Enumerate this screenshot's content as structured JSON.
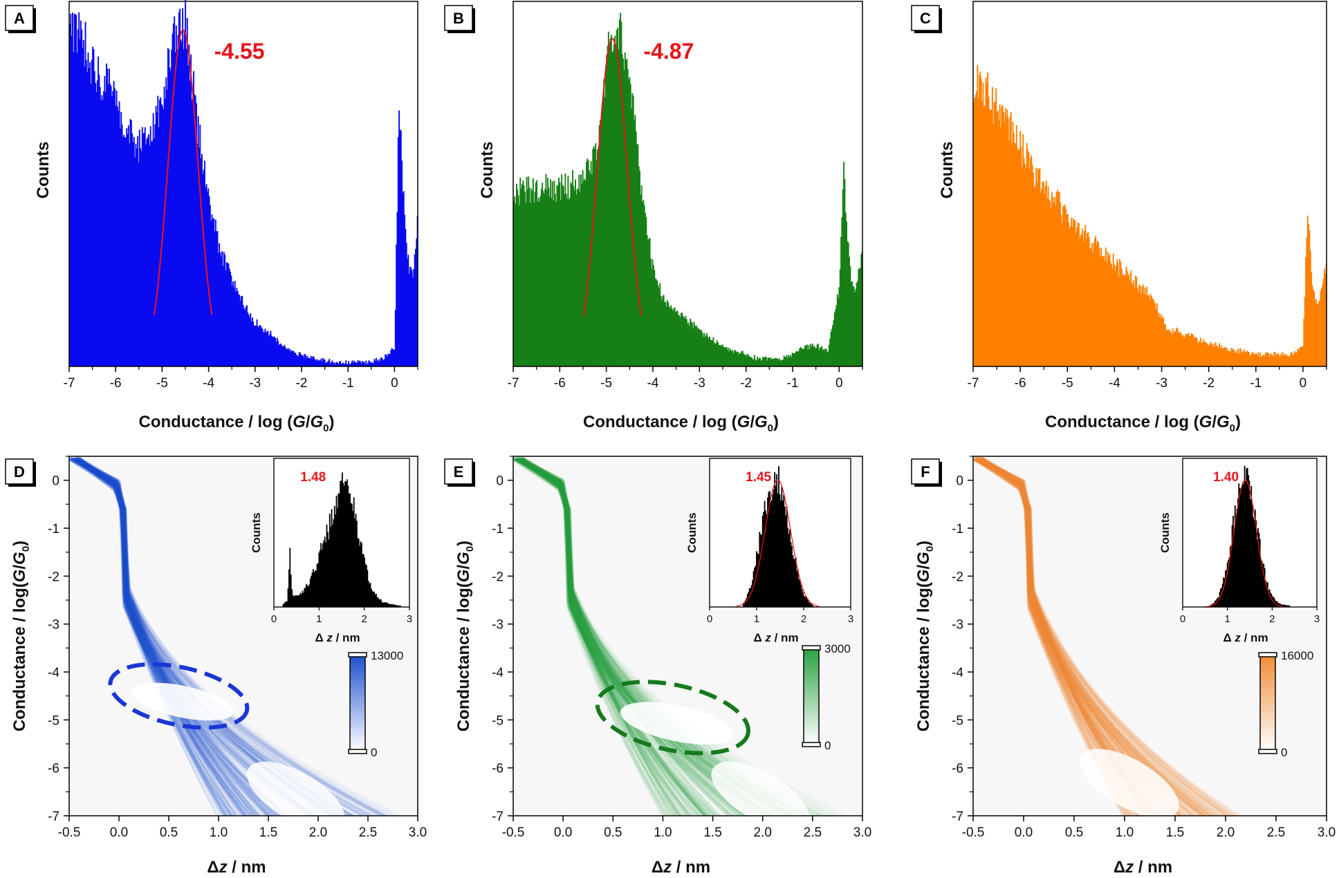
{
  "chart_data": [
    {
      "panel": "A",
      "type": "bar",
      "xlabel": "Conductance / log (G/G0)",
      "ylabel": "Counts",
      "xlim": [
        -7,
        0.5
      ],
      "color": "#0a0af0",
      "xticks": [
        "-7",
        "-6",
        "-5",
        "-4",
        "-3",
        "-2",
        "-1",
        "0"
      ],
      "peak_label": "-4.55",
      "peak_x": -4.55,
      "x": [
        -7.0,
        -6.75,
        -6.5,
        -6.25,
        -6.0,
        -5.75,
        -5.5,
        -5.25,
        -5.0,
        -4.75,
        -4.5,
        -4.25,
        -4.0,
        -3.75,
        -3.5,
        -3.25,
        -3.0,
        -2.75,
        -2.5,
        -2.25,
        -2.0,
        -1.75,
        -1.5,
        -1.25,
        -1.0,
        -0.75,
        -0.5,
        -0.25,
        0.0,
        0.1,
        0.2,
        0.3,
        0.4,
        0.5
      ],
      "values": [
        0.85,
        0.86,
        0.76,
        0.72,
        0.67,
        0.6,
        0.56,
        0.59,
        0.68,
        0.83,
        0.86,
        0.62,
        0.42,
        0.29,
        0.22,
        0.16,
        0.11,
        0.09,
        0.06,
        0.04,
        0.03,
        0.02,
        0.015,
        0.01,
        0.01,
        0.01,
        0.012,
        0.02,
        0.05,
        0.7,
        0.4,
        0.25,
        0.22,
        0.4
      ]
    },
    {
      "panel": "B",
      "type": "bar",
      "xlabel": "Conductance / log (G/G0)",
      "ylabel": "Counts",
      "xlim": [
        -7,
        0.5
      ],
      "color": "#168016",
      "xticks": [
        "-7",
        "-6",
        "-5",
        "-4",
        "-3",
        "-2",
        "-1",
        "0"
      ],
      "peak_label": "-4.87",
      "peak_x": -4.87,
      "x": [
        -7.0,
        -6.75,
        -6.5,
        -6.25,
        -6.0,
        -5.75,
        -5.5,
        -5.25,
        -5.0,
        -4.75,
        -4.5,
        -4.25,
        -4.0,
        -3.75,
        -3.5,
        -3.25,
        -3.0,
        -2.75,
        -2.5,
        -2.25,
        -2.0,
        -1.75,
        -1.5,
        -1.25,
        -1.0,
        -0.75,
        -0.5,
        -0.25,
        0.0,
        0.1,
        0.2,
        0.3,
        0.4,
        0.5
      ],
      "values": [
        0.43,
        0.45,
        0.45,
        0.45,
        0.45,
        0.46,
        0.47,
        0.52,
        0.78,
        0.88,
        0.72,
        0.45,
        0.25,
        0.16,
        0.14,
        0.12,
        0.09,
        0.07,
        0.05,
        0.04,
        0.03,
        0.02,
        0.02,
        0.02,
        0.03,
        0.05,
        0.05,
        0.04,
        0.2,
        0.5,
        0.28,
        0.18,
        0.22,
        0.28
      ]
    },
    {
      "panel": "C",
      "type": "bar",
      "xlabel": "Conductance / log (G/G0)",
      "ylabel": "Counts",
      "xlim": [
        -7,
        0.5
      ],
      "color": "#ff8000",
      "xticks": [
        "-7",
        "-6",
        "-5",
        "-4",
        "-3",
        "-2",
        "-1",
        "0"
      ],
      "x": [
        -7.0,
        -6.75,
        -6.5,
        -6.25,
        -6.0,
        -5.75,
        -5.5,
        -5.25,
        -5.0,
        -4.75,
        -4.5,
        -4.25,
        -4.0,
        -3.75,
        -3.5,
        -3.25,
        -3.0,
        -2.85,
        -2.7,
        -2.5,
        -2.25,
        -2.0,
        -1.75,
        -1.5,
        -1.25,
        -1.0,
        -0.75,
        -0.5,
        -0.25,
        0.0,
        0.1,
        0.2,
        0.3,
        0.4,
        0.5
      ],
      "values": [
        0.72,
        0.7,
        0.66,
        0.61,
        0.56,
        0.5,
        0.46,
        0.42,
        0.38,
        0.35,
        0.32,
        0.29,
        0.26,
        0.24,
        0.21,
        0.18,
        0.12,
        0.09,
        0.09,
        0.08,
        0.07,
        0.06,
        0.05,
        0.04,
        0.04,
        0.03,
        0.03,
        0.03,
        0.03,
        0.05,
        0.42,
        0.2,
        0.15,
        0.2,
        0.25
      ]
    },
    {
      "panel": "D",
      "type": "heatmap",
      "xlabel": "Δz / nm",
      "ylabel": "Conductance / log(G/G0)",
      "xlim": [
        -0.5,
        3.0
      ],
      "ylim": [
        -7,
        0.5
      ],
      "color": "#1c4fd0",
      "xticks": [
        "-0.5",
        "0.0",
        "0.5",
        "1.0",
        "1.5",
        "2.0",
        "2.5",
        "3.0"
      ],
      "yticks": [
        "0",
        "-1",
        "-2",
        "-3",
        "-4",
        "-5",
        "-6",
        "-7"
      ],
      "colorbar": {
        "max": "13000",
        "min": "0"
      },
      "ellipse": {
        "cx": 0.6,
        "cy": -4.5,
        "rx": 0.7,
        "ry": 0.6
      },
      "inset": {
        "type": "bar",
        "xlabel": "Δ z / nm",
        "ylabel": "Counts",
        "xlim": [
          0,
          3
        ],
        "xticks": [
          "0",
          "1",
          "2",
          "3"
        ],
        "peak_label": "1.48",
        "x": [
          0.2,
          0.3,
          0.35,
          0.4,
          0.5,
          0.6,
          0.7,
          0.8,
          0.9,
          1.0,
          1.1,
          1.2,
          1.3,
          1.4,
          1.5,
          1.6,
          1.7,
          1.8,
          1.9,
          2.0,
          2.1,
          2.2,
          2.3,
          2.4,
          2.6,
          2.8
        ],
        "values": [
          0.02,
          0.05,
          0.45,
          0.1,
          0.08,
          0.1,
          0.14,
          0.2,
          0.28,
          0.38,
          0.48,
          0.58,
          0.7,
          0.82,
          0.92,
          0.95,
          0.85,
          0.68,
          0.5,
          0.34,
          0.2,
          0.12,
          0.07,
          0.04,
          0.02,
          0.01
        ]
      }
    },
    {
      "panel": "E",
      "type": "heatmap",
      "xlabel": "Δz / nm",
      "ylabel": "Conductance / log(G/G0)",
      "xlim": [
        -0.5,
        3.0
      ],
      "ylim": [
        -7,
        0.5
      ],
      "color": "#28a040",
      "xticks": [
        "-0.5",
        "0.0",
        "0.5",
        "1.0",
        "1.5",
        "2.0",
        "2.5",
        "3.0"
      ],
      "yticks": [
        "0",
        "-1",
        "-2",
        "-3",
        "-4",
        "-5",
        "-6",
        "-7"
      ],
      "colorbar": {
        "max": "3000",
        "min": "0"
      },
      "ellipse": {
        "cx": 1.1,
        "cy": -4.95,
        "rx": 0.77,
        "ry": 0.68
      },
      "inset": {
        "type": "bar",
        "xlabel": "Δ z / nm",
        "ylabel": "Counts",
        "xlim": [
          0,
          3
        ],
        "xticks": [
          "0",
          "1",
          "2",
          "3"
        ],
        "peak_label": "1.45",
        "x": [
          0.7,
          0.8,
          0.9,
          1.0,
          1.1,
          1.2,
          1.3,
          1.4,
          1.5,
          1.6,
          1.7,
          1.8,
          1.9,
          2.0,
          2.1,
          2.2
        ],
        "values": [
          0.02,
          0.08,
          0.2,
          0.38,
          0.58,
          0.75,
          0.88,
          0.97,
          0.92,
          0.78,
          0.58,
          0.38,
          0.22,
          0.1,
          0.04,
          0.01
        ]
      }
    },
    {
      "panel": "F",
      "type": "heatmap",
      "xlabel": "Δz / nm",
      "ylabel": "Conductance / log(G/G0)",
      "xlim": [
        -0.5,
        3.0
      ],
      "ylim": [
        -7,
        0.5
      ],
      "color": "#f08a36",
      "xticks": [
        "-0.5",
        "0.0",
        "0.5",
        "1.0",
        "1.5",
        "2.0",
        "2.5",
        "3.0"
      ],
      "yticks": [
        "0",
        "-1",
        "-2",
        "-3",
        "-4",
        "-5",
        "-6",
        "-7"
      ],
      "colorbar": {
        "max": "16000",
        "min": "0"
      },
      "inset": {
        "type": "bar",
        "xlabel": "Δ z / nm",
        "ylabel": "Counts",
        "xlim": [
          0,
          3
        ],
        "xticks": [
          "0",
          "1",
          "2",
          "3"
        ],
        "peak_label": "1.40",
        "x": [
          0.6,
          0.7,
          0.8,
          0.9,
          1.0,
          1.1,
          1.2,
          1.3,
          1.4,
          1.5,
          1.6,
          1.7,
          1.8,
          1.9,
          2.0,
          2.1,
          2.2,
          2.4
        ],
        "values": [
          0.01,
          0.03,
          0.08,
          0.18,
          0.35,
          0.55,
          0.75,
          0.9,
          0.97,
          0.9,
          0.72,
          0.5,
          0.3,
          0.16,
          0.08,
          0.04,
          0.02,
          0.01
        ]
      }
    }
  ]
}
